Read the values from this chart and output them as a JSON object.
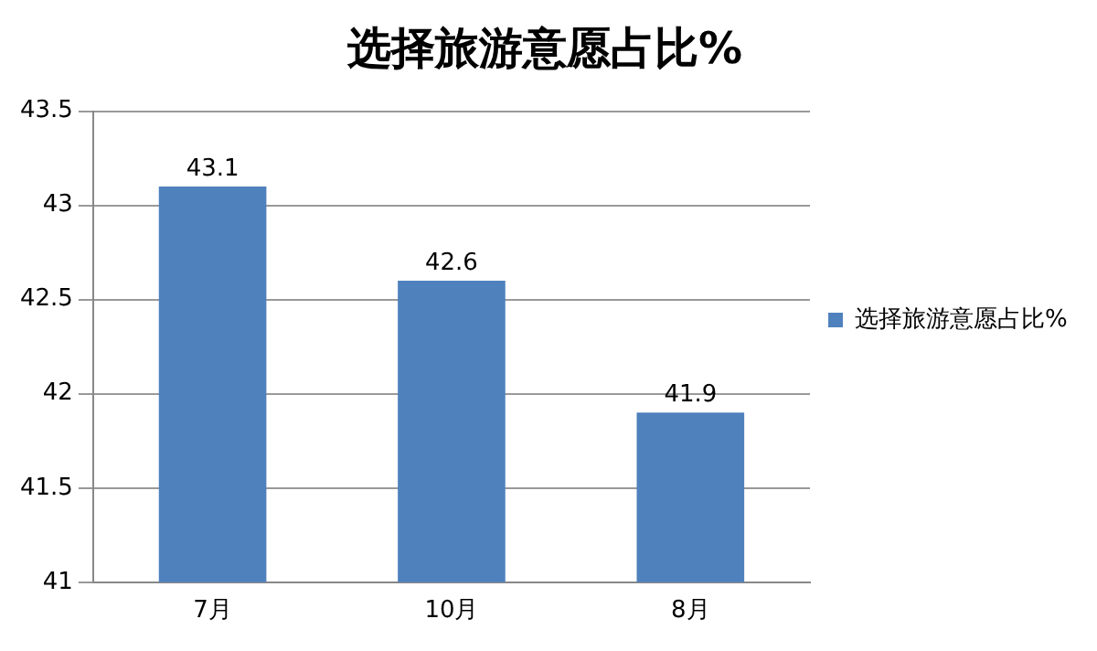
{
  "chart_data": {
    "type": "bar",
    "title": "选择旅游意愿占比%",
    "categories": [
      "7月",
      "10月",
      "8月"
    ],
    "series": [
      {
        "name": "选择旅游意愿占比%",
        "color": "#4f81bd",
        "values": [
          43.1,
          42.6,
          41.9
        ]
      }
    ],
    "ylim": [
      41,
      43.5
    ],
    "yticks": [
      41,
      41.5,
      42,
      42.5,
      43,
      43.5
    ],
    "grid": "y",
    "legend": "right",
    "data_labels": true
  }
}
